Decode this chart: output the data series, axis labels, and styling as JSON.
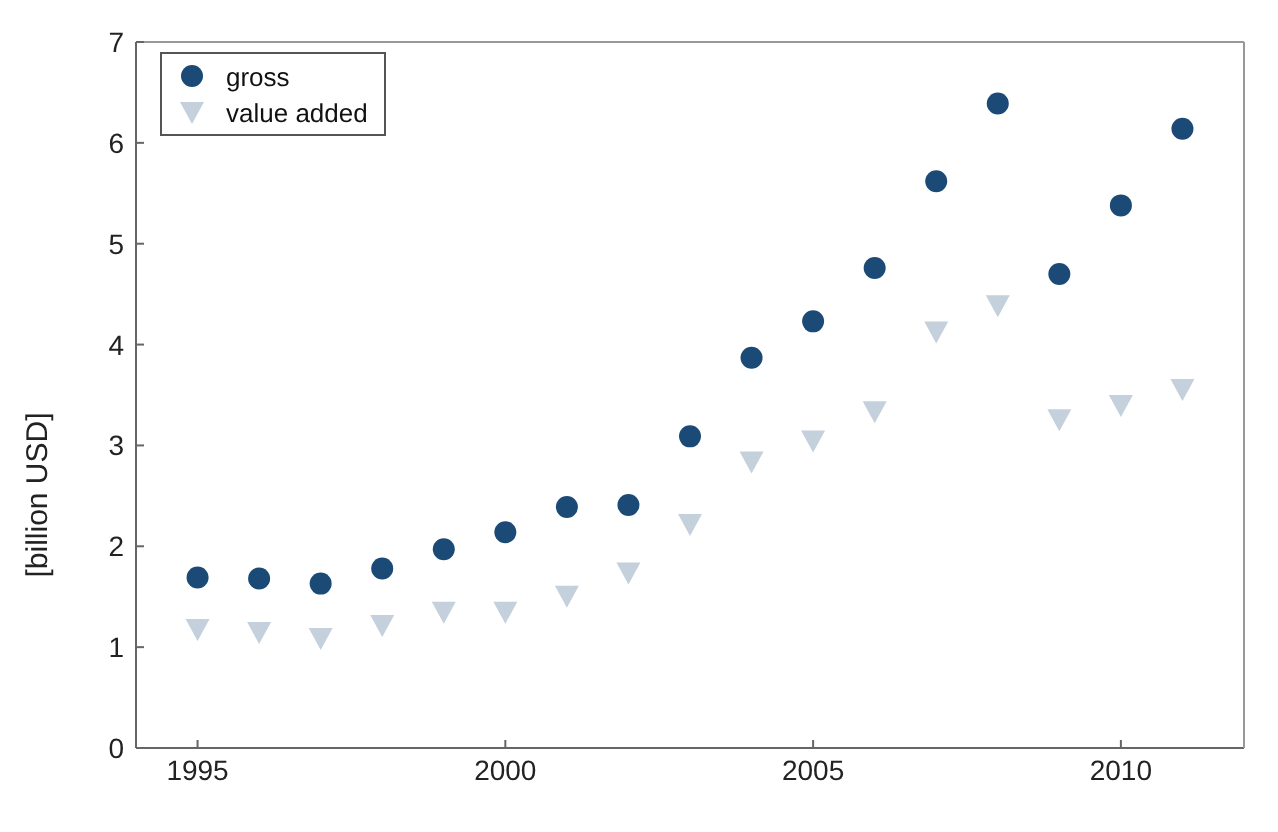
{
  "chart_data": {
    "type": "scatter",
    "ylabel": "[billion USD]",
    "x": [
      1995,
      1996,
      1997,
      1998,
      1999,
      2000,
      2001,
      2002,
      2003,
      2004,
      2005,
      2006,
      2007,
      2008,
      2009,
      2010,
      2011
    ],
    "series": [
      {
        "name": "gross",
        "color": "#1a4a75",
        "marker": "circle",
        "values": [
          1.69,
          1.68,
          1.63,
          1.78,
          1.97,
          2.14,
          2.39,
          2.41,
          3.09,
          3.87,
          4.23,
          4.76,
          5.62,
          6.39,
          4.7,
          5.38,
          6.14
        ]
      },
      {
        "name": "value added",
        "color": "#c4d0dc",
        "marker": "triangle",
        "values": [
          1.18,
          1.15,
          1.09,
          1.22,
          1.35,
          1.35,
          1.51,
          1.74,
          2.22,
          2.84,
          3.05,
          3.34,
          4.13,
          4.39,
          3.26,
          3.4,
          3.56
        ]
      }
    ],
    "xlim": [
      1994,
      2012
    ],
    "xticks": [
      1995,
      2000,
      2005,
      2010
    ],
    "ylim": [
      0,
      7
    ],
    "yticks": [
      0,
      1,
      2,
      3,
      4,
      5,
      6,
      7
    ],
    "legend": "top left"
  }
}
